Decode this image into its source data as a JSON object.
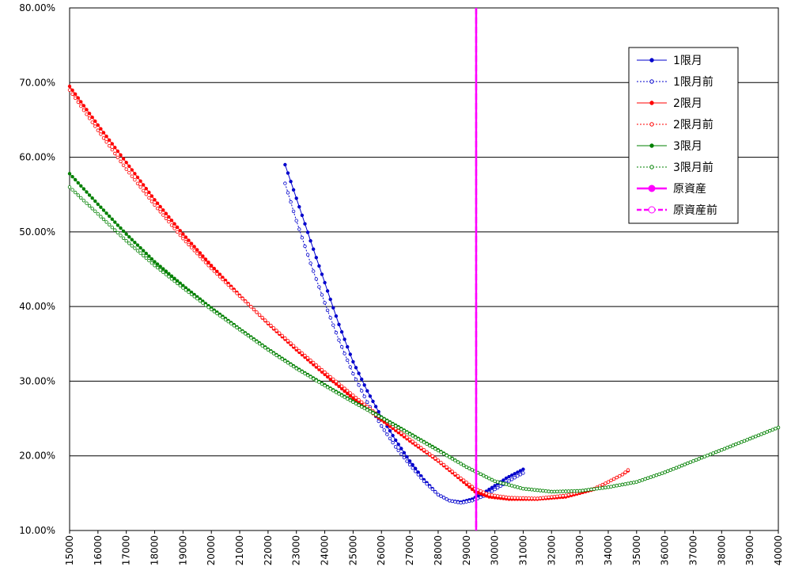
{
  "chart_data": {
    "type": "line",
    "title": "",
    "xlabel": "",
    "ylabel": "",
    "xlim": [
      15000,
      40000
    ],
    "ylim": [
      0.1,
      0.8
    ],
    "x_ticks": [
      15000,
      16000,
      17000,
      18000,
      19000,
      20000,
      21000,
      22000,
      23000,
      24000,
      25000,
      26000,
      27000,
      28000,
      29000,
      30000,
      31000,
      32000,
      33000,
      34000,
      35000,
      36000,
      37000,
      38000,
      39000,
      40000
    ],
    "x_tick_labels": [
      "15000",
      "16000",
      "17000",
      "18000",
      "19000",
      "20000",
      "21000",
      "22000",
      "23000",
      "24000",
      "25000",
      "26000",
      "27000",
      "28000",
      "29000",
      "30000",
      "31000",
      "32000",
      "33000",
      "34000",
      "35000",
      "36000",
      "37000",
      "38000",
      "39000",
      "40000"
    ],
    "y_ticks": [
      0.1,
      0.2,
      0.3,
      0.4,
      0.5,
      0.6,
      0.7,
      0.8
    ],
    "y_tick_labels": [
      "10.00%",
      "20.00%",
      "30.00%",
      "40.00%",
      "50.00%",
      "60.00%",
      "70.00%",
      "80.00%"
    ],
    "grid": "horizontal",
    "legend_position": "right",
    "series": [
      {
        "name": "1限月",
        "color": "#0000cc",
        "style": "solid",
        "marker": "filled",
        "points": [
          [
            22600,
            0.59
          ],
          [
            23000,
            0.545
          ],
          [
            23500,
            0.488
          ],
          [
            24000,
            0.432
          ],
          [
            24500,
            0.376
          ],
          [
            25000,
            0.326
          ],
          [
            25500,
            0.287
          ],
          [
            26000,
            0.252
          ],
          [
            26500,
            0.221
          ],
          [
            27000,
            0.193
          ],
          [
            27500,
            0.168
          ],
          [
            28000,
            0.148
          ],
          [
            28400,
            0.14
          ],
          [
            28800,
            0.138
          ],
          [
            29200,
            0.142
          ],
          [
            29600,
            0.15
          ],
          [
            30000,
            0.16
          ],
          [
            30400,
            0.17
          ],
          [
            30800,
            0.178
          ],
          [
            31000,
            0.182
          ]
        ]
      },
      {
        "name": "1限月前",
        "color": "#0000cc",
        "style": "dotted",
        "marker": "open",
        "points": [
          [
            22600,
            0.565
          ],
          [
            23000,
            0.515
          ],
          [
            23500,
            0.458
          ],
          [
            24000,
            0.405
          ],
          [
            24500,
            0.355
          ],
          [
            25000,
            0.31
          ],
          [
            25500,
            0.272
          ],
          [
            26000,
            0.24
          ],
          [
            26500,
            0.212
          ],
          [
            27000,
            0.188
          ],
          [
            27500,
            0.166
          ],
          [
            28000,
            0.148
          ],
          [
            28400,
            0.14
          ],
          [
            28800,
            0.137
          ],
          [
            29200,
            0.14
          ],
          [
            29600,
            0.146
          ],
          [
            30000,
            0.155
          ],
          [
            30400,
            0.164
          ],
          [
            30800,
            0.173
          ],
          [
            31000,
            0.177
          ]
        ]
      },
      {
        "name": "2限月",
        "color": "#ff0000",
        "style": "solid",
        "marker": "filled",
        "points": [
          [
            15000,
            0.695
          ],
          [
            16000,
            0.643
          ],
          [
            17000,
            0.593
          ],
          [
            18000,
            0.543
          ],
          [
            19000,
            0.497
          ],
          [
            20000,
            0.455
          ],
          [
            21000,
            0.415
          ],
          [
            22000,
            0.377
          ],
          [
            23000,
            0.342
          ],
          [
            24000,
            0.309
          ],
          [
            25000,
            0.277
          ],
          [
            26000,
            0.248
          ],
          [
            27000,
            0.22
          ],
          [
            28000,
            0.193
          ],
          [
            28800,
            0.168
          ],
          [
            29300,
            0.152
          ],
          [
            29800,
            0.145
          ],
          [
            30500,
            0.142
          ],
          [
            31500,
            0.142
          ],
          [
            32500,
            0.145
          ],
          [
            33500,
            0.155
          ],
          [
            34000,
            0.165
          ],
          [
            34500,
            0.175
          ],
          [
            34700,
            0.18
          ]
        ]
      },
      {
        "name": "2限月前",
        "color": "#ff0000",
        "style": "dotted",
        "marker": "open",
        "points": [
          [
            15000,
            0.69
          ],
          [
            16000,
            0.636
          ],
          [
            17000,
            0.584
          ],
          [
            18000,
            0.536
          ],
          [
            19000,
            0.491
          ],
          [
            20000,
            0.451
          ],
          [
            21000,
            0.414
          ],
          [
            22000,
            0.378
          ],
          [
            23000,
            0.344
          ],
          [
            24000,
            0.312
          ],
          [
            25000,
            0.281
          ],
          [
            26000,
            0.251
          ],
          [
            27000,
            0.222
          ],
          [
            28000,
            0.194
          ],
          [
            28800,
            0.17
          ],
          [
            29300,
            0.156
          ],
          [
            29800,
            0.148
          ],
          [
            30500,
            0.144
          ],
          [
            31500,
            0.143
          ],
          [
            32500,
            0.147
          ],
          [
            33500,
            0.156
          ],
          [
            34000,
            0.165
          ],
          [
            34500,
            0.175
          ],
          [
            34700,
            0.181
          ]
        ]
      },
      {
        "name": "3限月",
        "color": "#008000",
        "style": "solid",
        "marker": "filled",
        "points": [
          [
            15000,
            0.578
          ],
          [
            16000,
            0.537
          ],
          [
            17000,
            0.497
          ],
          [
            18000,
            0.46
          ],
          [
            19000,
            0.428
          ],
          [
            20000,
            0.398
          ],
          [
            21000,
            0.37
          ],
          [
            22000,
            0.343
          ],
          [
            23000,
            0.318
          ],
          [
            24000,
            0.295
          ],
          [
            25000,
            0.273
          ],
          [
            26000,
            0.252
          ],
          [
            27000,
            0.23
          ],
          [
            28000,
            0.208
          ],
          [
            29000,
            0.185
          ],
          [
            30000,
            0.166
          ],
          [
            31000,
            0.156
          ],
          [
            32000,
            0.152
          ],
          [
            33000,
            0.153
          ],
          [
            34000,
            0.158
          ],
          [
            35000,
            0.165
          ],
          [
            36000,
            0.178
          ],
          [
            37000,
            0.193
          ],
          [
            38000,
            0.208
          ],
          [
            39000,
            0.223
          ],
          [
            40000,
            0.238
          ]
        ]
      },
      {
        "name": "3限月前",
        "color": "#008000",
        "style": "dotted",
        "marker": "open",
        "points": [
          [
            15000,
            0.56
          ],
          [
            16000,
            0.524
          ],
          [
            17000,
            0.488
          ],
          [
            18000,
            0.455
          ],
          [
            19000,
            0.425
          ],
          [
            20000,
            0.396
          ],
          [
            21000,
            0.369
          ],
          [
            22000,
            0.342
          ],
          [
            23000,
            0.317
          ],
          [
            24000,
            0.294
          ],
          [
            25000,
            0.272
          ],
          [
            26000,
            0.251
          ],
          [
            27000,
            0.229
          ],
          [
            28000,
            0.207
          ],
          [
            29000,
            0.185
          ],
          [
            30000,
            0.166
          ],
          [
            31000,
            0.156
          ],
          [
            32000,
            0.152
          ],
          [
            33000,
            0.153
          ],
          [
            34000,
            0.158
          ],
          [
            35000,
            0.165
          ],
          [
            36000,
            0.178
          ],
          [
            37000,
            0.193
          ],
          [
            38000,
            0.208
          ],
          [
            39000,
            0.223
          ],
          [
            40000,
            0.238
          ]
        ]
      },
      {
        "name": "原資産",
        "color": "#ff00ff",
        "style": "solid",
        "marker": "filled",
        "vertical_x": 29340
      },
      {
        "name": "原資産前",
        "color": "#ff00ff",
        "style": "dashed",
        "marker": "open",
        "vertical_x": 29340
      }
    ]
  }
}
